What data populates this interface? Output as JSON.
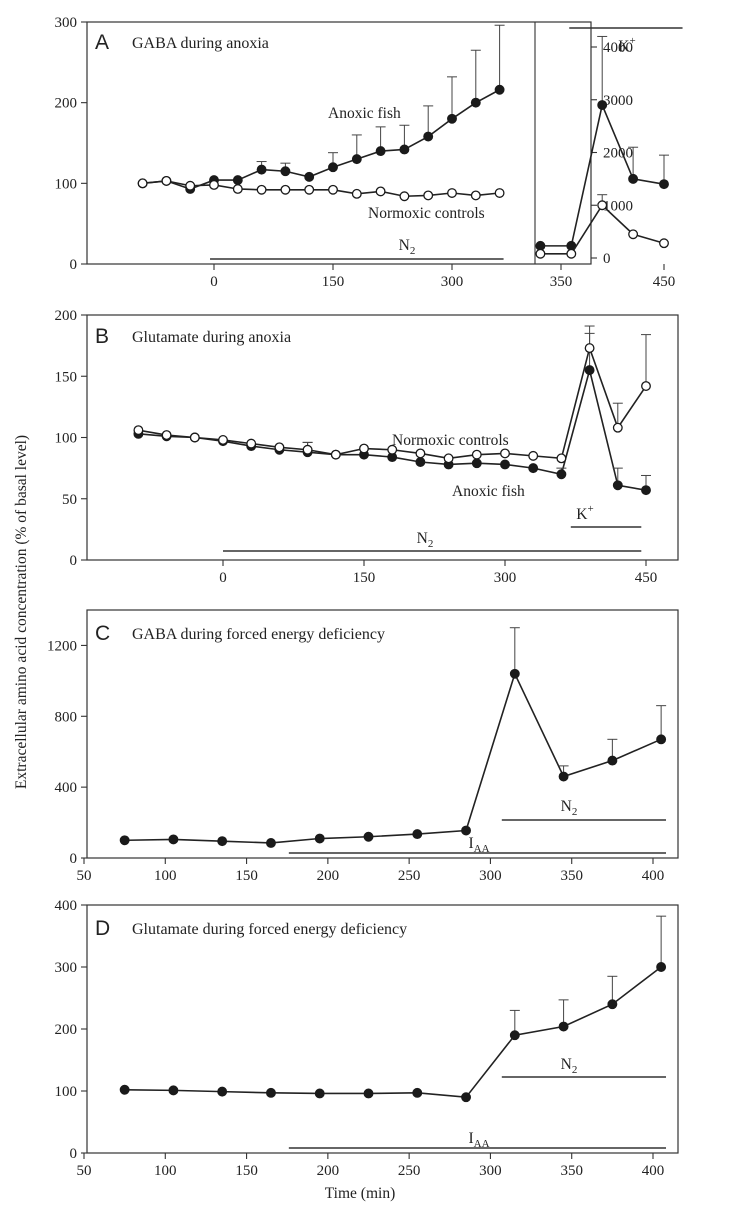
{
  "y_axis_label": "Extracellular amino acid concentration (% of basal level)",
  "x_axis_label": "Time (min)",
  "chart_data": [
    {
      "type": "line",
      "panel": "A",
      "title": "GABA during anoxia",
      "xticks": [
        "0",
        "150",
        "300"
      ],
      "ylim": [
        0,
        300
      ],
      "yticks": [
        "0",
        "100",
        "200",
        "300"
      ],
      "x": [
        -90,
        -60,
        -30,
        0,
        30,
        60,
        90,
        120,
        150,
        180,
        210,
        240,
        270,
        300,
        330,
        360
      ],
      "series": [
        {
          "name": "Anoxic fish",
          "marker": "filled",
          "values": [
            100,
            103,
            93,
            104,
            104,
            117,
            115,
            108,
            120,
            130,
            140,
            142,
            158,
            180,
            200,
            216
          ],
          "errors": [
            0,
            0,
            0,
            0,
            0,
            10,
            10,
            0,
            18,
            30,
            30,
            30,
            38,
            52,
            65,
            80
          ]
        },
        {
          "name": "Normoxic controls",
          "marker": "open",
          "values": [
            100,
            103,
            97,
            98,
            93,
            92,
            92,
            92,
            92,
            87,
            90,
            84,
            85,
            88,
            85,
            88
          ],
          "errors": [
            0,
            0,
            0,
            0,
            0,
            0,
            0,
            0,
            0,
            0,
            0,
            0,
            0,
            0,
            0,
            0
          ]
        }
      ],
      "bars": [
        {
          "label": "N2",
          "from": -5,
          "to": 365
        }
      ],
      "inset": {
        "xticks": [
          "350",
          "450"
        ],
        "ylim": [
          0,
          4300
        ],
        "yticks": [
          "0",
          "1000",
          "2000",
          "3000",
          "4000"
        ],
        "x": [
          330,
          360,
          390,
          420,
          450
        ],
        "series": [
          {
            "name": "Anoxic fish",
            "marker": "filled",
            "values": [
              230,
              230,
              2900,
              1500,
              1400
            ],
            "errors": [
              0,
              0,
              1300,
              600,
              550
            ]
          },
          {
            "name": "Normoxic controls",
            "marker": "open",
            "values": [
              80,
              80,
              1000,
              450,
              280
            ],
            "errors": [
              0,
              0,
              200,
              0,
              0
            ]
          }
        ],
        "bars": [
          {
            "label": "K+",
            "from": 355,
            "to": 470
          }
        ]
      }
    },
    {
      "type": "line",
      "panel": "B",
      "title": "Glutamate during anoxia",
      "xticks": [
        "0",
        "150",
        "300",
        "450"
      ],
      "ylim": [
        0,
        200
      ],
      "yticks": [
        "0",
        "50",
        "100",
        "150",
        "200"
      ],
      "x": [
        -90,
        -60,
        -30,
        0,
        30,
        60,
        90,
        120,
        150,
        180,
        210,
        240,
        270,
        300,
        330,
        360,
        390,
        420,
        450
      ],
      "series": [
        {
          "name": "Anoxic fish",
          "marker": "filled",
          "values": [
            103,
            101,
            100,
            97,
            93,
            90,
            88,
            86,
            86,
            84,
            80,
            78,
            79,
            78,
            75,
            70,
            155,
            61,
            57
          ],
          "errors": [
            0,
            0,
            0,
            0,
            0,
            0,
            8,
            0,
            0,
            0,
            0,
            0,
            0,
            0,
            0,
            5,
            30,
            14,
            12
          ]
        },
        {
          "name": "Normoxic controls",
          "marker": "open",
          "values": [
            106,
            102,
            100,
            98,
            95,
            92,
            90,
            86,
            91,
            90,
            87,
            83,
            86,
            87,
            85,
            83,
            173,
            108,
            142
          ],
          "errors": [
            0,
            0,
            0,
            0,
            0,
            0,
            6,
            0,
            0,
            0,
            0,
            0,
            0,
            0,
            0,
            0,
            18,
            20,
            42
          ]
        }
      ],
      "bars": [
        {
          "label": "N2",
          "from": 0,
          "to": 445
        },
        {
          "label": "K+",
          "from": 370,
          "to": 445
        }
      ]
    },
    {
      "type": "line",
      "panel": "C",
      "title": "GABA during forced energy deficiency",
      "xticks": [
        "50",
        "100",
        "150",
        "200",
        "250",
        "300",
        "350",
        "400"
      ],
      "xlim": [
        50,
        420
      ],
      "ylim": [
        0,
        1400
      ],
      "yticks": [
        "0",
        "400",
        "800",
        "1200"
      ],
      "x": [
        75,
        105,
        135,
        165,
        195,
        225,
        255,
        285,
        315,
        345,
        375,
        405
      ],
      "series": [
        {
          "name": "",
          "marker": "filled",
          "values": [
            100,
            105,
            95,
            85,
            110,
            120,
            135,
            155,
            1040,
            460,
            550,
            670
          ],
          "errors": [
            0,
            0,
            0,
            0,
            0,
            0,
            0,
            0,
            260,
            60,
            120,
            190
          ]
        }
      ],
      "bars": [
        {
          "label": "N2",
          "from": 307,
          "to": 408
        },
        {
          "label": "IAA",
          "from": 176,
          "to": 408
        }
      ]
    },
    {
      "type": "line",
      "panel": "D",
      "title": "Glutamate during forced energy deficiency",
      "xticks": [
        "50",
        "100",
        "150",
        "200",
        "250",
        "300",
        "350",
        "400"
      ],
      "xlim": [
        50,
        420
      ],
      "ylim": [
        0,
        400
      ],
      "yticks": [
        "0",
        "100",
        "200",
        "300",
        "400"
      ],
      "x": [
        75,
        105,
        135,
        165,
        195,
        225,
        255,
        285,
        315,
        345,
        375,
        405
      ],
      "series": [
        {
          "name": "",
          "marker": "filled",
          "values": [
            102,
            101,
            99,
            97,
            96,
            96,
            97,
            90,
            190,
            204,
            240,
            300
          ],
          "errors": [
            0,
            0,
            0,
            0,
            0,
            0,
            0,
            0,
            40,
            43,
            45,
            82
          ]
        }
      ],
      "bars": [
        {
          "label": "N2",
          "from": 307,
          "to": 408
        },
        {
          "label": "IAA",
          "from": 176,
          "to": 408
        }
      ]
    }
  ]
}
